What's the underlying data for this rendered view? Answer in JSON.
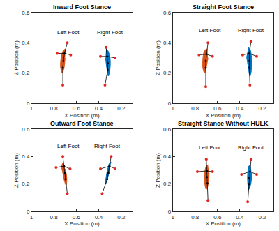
{
  "chart_data": [
    {
      "type": "scatter",
      "title": "Inward Foot Stance",
      "xlabel": "X Position (m)",
      "ylabel": "Z Position (m)",
      "xlim": [
        1,
        0.1
      ],
      "xticks": [
        1,
        0.8,
        0.6,
        0.4,
        0.2
      ],
      "ylim": [
        0,
        0.6
      ],
      "yticks": [
        0,
        0.2,
        0.4,
        0.6
      ],
      "grid": false,
      "series": [
        {
          "name": "Left Foot",
          "color": "#D95319",
          "label": {
            "x": 0.67,
            "y": 0.44
          },
          "markers": {
            "x": [
              0.68,
              0.77,
              0.65,
              0.72
            ],
            "y": [
              0.4,
              0.33,
              0.32,
              0.12
            ]
          },
          "joints": {
            "x": [
              0.705,
              0.715,
              0.72
            ],
            "y": [
              0.33,
              0.28,
              0.235
            ]
          },
          "area": {
            "x": [
              0.695,
              0.715,
              0.735,
              0.74,
              0.725,
              0.71,
              0.7
            ],
            "y": [
              0.36,
              0.35,
              0.3,
              0.24,
              0.2,
              0.23,
              0.3
            ]
          }
        },
        {
          "name": "Right Foot",
          "color": "#0072BD",
          "label": {
            "x": 0.3,
            "y": 0.44
          },
          "markers": {
            "x": [
              0.335,
              0.385,
              0.255,
              0.345
            ],
            "y": [
              0.37,
              0.31,
              0.3,
              0.12
            ]
          },
          "joints": {
            "x": [
              0.325,
              0.32,
              0.32
            ],
            "y": [
              0.31,
              0.265,
              0.22
            ]
          },
          "area": {
            "x": [
              0.335,
              0.32,
              0.3,
              0.3,
              0.315,
              0.33,
              0.34
            ],
            "y": [
              0.36,
              0.35,
              0.3,
              0.23,
              0.18,
              0.24,
              0.3
            ]
          }
        }
      ]
    },
    {
      "type": "scatter",
      "title": "Straight Foot Stance",
      "xlabel": "X Position (m)",
      "ylabel": "Z Position (m)",
      "xlim": [
        1,
        0.1
      ],
      "xticks": [
        1,
        0.8,
        0.6,
        0.4,
        0.2
      ],
      "ylim": [
        0,
        0.6
      ],
      "yticks": [
        0,
        0.2,
        0.4,
        0.6
      ],
      "grid": false,
      "series": [
        {
          "name": "Left Foot",
          "color": "#D95319",
          "label": {
            "x": 0.67,
            "y": 0.45
          },
          "markers": {
            "x": [
              0.685,
              0.765,
              0.645,
              0.705
            ],
            "y": [
              0.4,
              0.32,
              0.31,
              0.11
            ]
          },
          "joints": {
            "x": [
              0.7,
              0.705,
              0.705
            ],
            "y": [
              0.325,
              0.28,
              0.235
            ]
          },
          "area": {
            "x": [
              0.69,
              0.715,
              0.73,
              0.73,
              0.715,
              0.7,
              0.685
            ],
            "y": [
              0.36,
              0.35,
              0.3,
              0.23,
              0.2,
              0.24,
              0.3
            ]
          }
        },
        {
          "name": "Right Foot",
          "color": "#0072BD",
          "label": {
            "x": 0.3,
            "y": 0.45
          },
          "markers": {
            "x": [
              0.3,
              0.375,
              0.25,
              0.31
            ],
            "y": [
              0.41,
              0.32,
              0.31,
              0.12
            ]
          },
          "joints": {
            "x": [
              0.315,
              0.315,
              0.315
            ],
            "y": [
              0.33,
              0.28,
              0.235
            ]
          },
          "area": {
            "x": [
              0.325,
              0.31,
              0.295,
              0.295,
              0.31,
              0.325,
              0.34
            ],
            "y": [
              0.37,
              0.36,
              0.3,
              0.23,
              0.18,
              0.24,
              0.31
            ]
          }
        }
      ]
    },
    {
      "type": "scatter",
      "title": "Outward Foot Stance",
      "xlabel": "X Position (m)",
      "ylabel": "Z Position (m)",
      "xlim": [
        1,
        0.1
      ],
      "xticks": [
        1,
        0.8,
        0.6,
        0.4,
        0.2
      ],
      "ylim": [
        0,
        0.6
      ],
      "yticks": [
        0,
        0.2,
        0.4,
        0.6
      ],
      "grid": false,
      "series": [
        {
          "name": "Left Foot",
          "color": "#D95319",
          "label": {
            "x": 0.67,
            "y": 0.44
          },
          "markers": {
            "x": [
              0.72,
              0.78,
              0.655,
              0.68
            ],
            "y": [
              0.4,
              0.32,
              0.31,
              0.13
            ]
          },
          "joints": {
            "x": [
              0.71,
              0.7,
              0.695
            ],
            "y": [
              0.33,
              0.28,
              0.235
            ]
          },
          "area": {
            "x": [
              0.715,
              0.73,
              0.72,
              0.705,
              0.69,
              0.685,
              0.7
            ],
            "y": [
              0.36,
              0.33,
              0.28,
              0.22,
              0.19,
              0.25,
              0.31
            ]
          }
        },
        {
          "name": "Right Foot",
          "color": "#0072BD",
          "label": {
            "x": 0.32,
            "y": 0.44
          },
          "markers": {
            "x": [
              0.29,
              0.385,
              0.255,
              0.37
            ],
            "y": [
              0.4,
              0.31,
              0.31,
              0.13
            ]
          },
          "joints": {
            "x": [
              0.305,
              0.315,
              0.325
            ],
            "y": [
              0.33,
              0.28,
              0.235
            ]
          },
          "area": {
            "x": [
              0.29,
              0.3,
              0.32,
              0.335,
              0.34,
              0.325,
              0.305
            ],
            "y": [
              0.36,
              0.36,
              0.31,
              0.25,
              0.2,
              0.23,
              0.3
            ]
          }
        }
      ]
    },
    {
      "type": "scatter",
      "title": "Straight Stance Without HULK",
      "xlabel": "X Position (m)",
      "ylabel": "Z Position (m)",
      "xlim": [
        1,
        0.1
      ],
      "xticks": [
        1,
        0.8,
        0.6,
        0.4,
        0.2
      ],
      "ylim": [
        0,
        0.6
      ],
      "yticks": [
        0,
        0.2,
        0.4,
        0.6
      ],
      "grid": false,
      "series": [
        {
          "name": "Left Foot",
          "color": "#D95319",
          "label": {
            "x": 0.67,
            "y": 0.43
          },
          "markers": {
            "x": [
              0.7,
              0.78,
              0.645,
              0.685
            ],
            "y": [
              0.38,
              0.29,
              0.29,
              0.08
            ]
          },
          "joints": {
            "x": [
              0.695,
              0.695,
              0.69
            ],
            "y": [
              0.295,
              0.25,
              0.205
            ]
          },
          "area": {
            "x": [
              0.685,
              0.7,
              0.715,
              0.715,
              0.7,
              0.68,
              0.675
            ],
            "y": [
              0.34,
              0.33,
              0.28,
              0.21,
              0.16,
              0.21,
              0.28
            ]
          }
        },
        {
          "name": "Right Foot",
          "color": "#0072BD",
          "label": {
            "x": 0.3,
            "y": 0.43
          },
          "markers": {
            "x": [
              0.3,
              0.385,
              0.25,
              0.33
            ],
            "y": [
              0.38,
              0.27,
              0.27,
              0.07
            ]
          },
          "joints": {
            "x": [
              0.31,
              0.315,
              0.32
            ],
            "y": [
              0.29,
              0.245,
              0.2
            ]
          },
          "area": {
            "x": [
              0.305,
              0.32,
              0.33,
              0.33,
              0.32,
              0.3,
              0.295
            ],
            "y": [
              0.34,
              0.33,
              0.28,
              0.21,
              0.16,
              0.21,
              0.28
            ]
          }
        }
      ]
    }
  ]
}
